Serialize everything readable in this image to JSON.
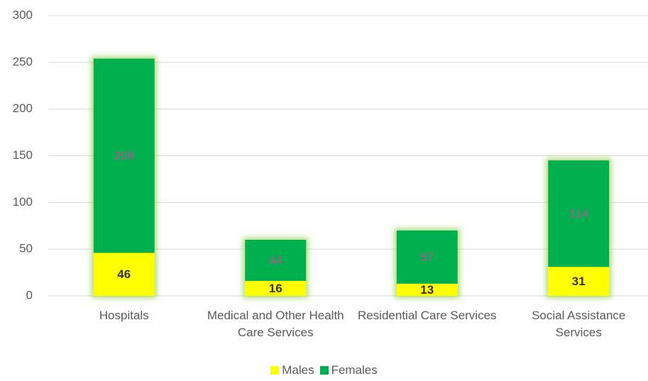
{
  "chart_data": {
    "type": "stacked_bar",
    "categories": [
      "Hospitals",
      "Medical and Other Health Care Services",
      "Residential Care Services",
      "Social Assistance Services"
    ],
    "series": [
      {
        "name": "Males",
        "color": "#ffff00",
        "values": [
          46,
          16,
          13,
          31
        ]
      },
      {
        "name": "Females",
        "color": "#00b050",
        "values": [
          208,
          44,
          57,
          114
        ]
      }
    ],
    "ylim": [
      0,
      300
    ],
    "yticks": [
      0,
      50,
      100,
      150,
      200,
      250,
      300
    ],
    "grid": true,
    "legend": "bottom"
  }
}
